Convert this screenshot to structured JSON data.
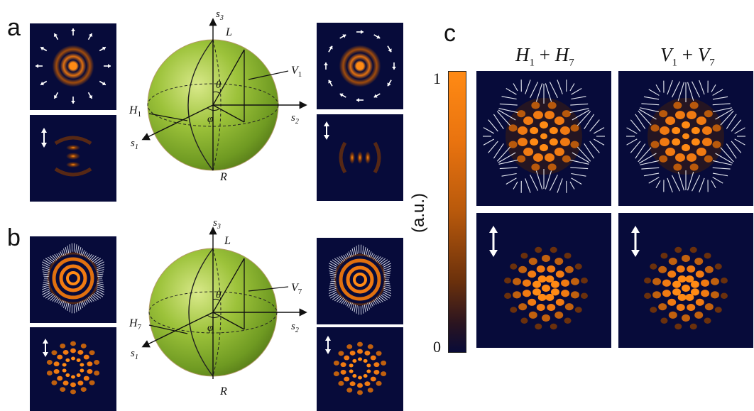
{
  "panel_labels": {
    "a": "a",
    "b": "b",
    "c": "c"
  },
  "sphere_a": {
    "s1": "s",
    "s1_sub": "1",
    "s2": "s",
    "s2_sub": "2",
    "s3": "s",
    "s3_sub": "3",
    "L": "L",
    "R": "R",
    "theta": "θ",
    "phi": "φ",
    "H": "H",
    "H_sub": "1",
    "V": "V",
    "V_sub": "1"
  },
  "sphere_b": {
    "s1": "s",
    "s1_sub": "1",
    "s2": "s",
    "s2_sub": "2",
    "s3": "s",
    "s3_sub": "3",
    "L": "L",
    "R": "R",
    "theta": "θ",
    "phi": "φ",
    "H": "H",
    "H_sub": "7",
    "V": "V",
    "V_sub": "7"
  },
  "panel_c": {
    "col1": {
      "a": "H",
      "a_sub": "1",
      "plus": " + ",
      "b": "H",
      "b_sub": "7"
    },
    "col2": {
      "a": "V",
      "a_sub": "1",
      "plus": " + ",
      "b": "V",
      "b_sub": "7"
    }
  },
  "colorbar": {
    "max": "1",
    "min": "0",
    "unit": "(a.u.)"
  },
  "colors": {
    "panel_bg": "#070b3a",
    "beam_orange": "#ff8a14",
    "sphere_green": "#9cc23a"
  }
}
